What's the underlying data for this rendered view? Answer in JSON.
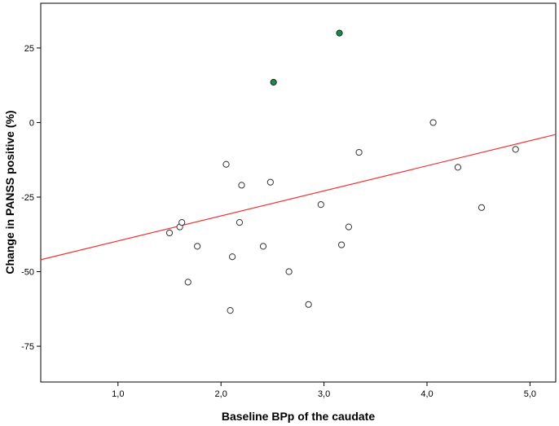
{
  "chart_data": {
    "type": "scatter",
    "title": "",
    "xlabel": "Baseline BPp of the caudate",
    "ylabel": "Change in PANSS positive (%)",
    "xlim": [
      0.25,
      5.25
    ],
    "ylim": [
      -87,
      40
    ],
    "x_ticks": [
      {
        "value": 1.0,
        "label": "1,0"
      },
      {
        "value": 2.0,
        "label": "2,0"
      },
      {
        "value": 3.0,
        "label": "3,0"
      },
      {
        "value": 4.0,
        "label": "4,0"
      },
      {
        "value": 5.0,
        "label": "5,0"
      }
    ],
    "y_ticks": [
      {
        "value": 25,
        "label": "25"
      },
      {
        "value": 0,
        "label": "0"
      },
      {
        "value": -25,
        "label": "-25"
      },
      {
        "value": -50,
        "label": "-50"
      },
      {
        "value": -75,
        "label": "-75"
      }
    ],
    "grid": false,
    "series": [
      {
        "marker": "open-circle",
        "color": "#ffffff",
        "stroke": "#333333",
        "points": [
          {
            "x": 1.5,
            "y": -37
          },
          {
            "x": 1.6,
            "y": -35
          },
          {
            "x": 1.62,
            "y": -33.5
          },
          {
            "x": 1.68,
            "y": -53.5
          },
          {
            "x": 1.77,
            "y": -41.5
          },
          {
            "x": 2.05,
            "y": -14
          },
          {
            "x": 2.09,
            "y": -63
          },
          {
            "x": 2.11,
            "y": -45
          },
          {
            "x": 2.18,
            "y": -33.5
          },
          {
            "x": 2.2,
            "y": -21
          },
          {
            "x": 2.41,
            "y": -41.5
          },
          {
            "x": 2.48,
            "y": -20
          },
          {
            "x": 2.66,
            "y": -50
          },
          {
            "x": 2.85,
            "y": -61
          },
          {
            "x": 2.97,
            "y": -27.5
          },
          {
            "x": 3.17,
            "y": -41
          },
          {
            "x": 3.24,
            "y": -35
          },
          {
            "x": 3.34,
            "y": -10
          },
          {
            "x": 4.06,
            "y": 0
          },
          {
            "x": 4.3,
            "y": -15
          },
          {
            "x": 4.53,
            "y": -28.5
          },
          {
            "x": 4.86,
            "y": -9
          }
        ]
      },
      {
        "marker": "filled-circle",
        "color": "#1a8a4a",
        "stroke": "#222222",
        "points": [
          {
            "x": 2.51,
            "y": 13.5
          },
          {
            "x": 3.15,
            "y": 30
          }
        ]
      }
    ],
    "fit_line": {
      "color": "#ee3333",
      "points": [
        {
          "x": 0.25,
          "y": -46
        },
        {
          "x": 5.25,
          "y": -4
        }
      ]
    }
  }
}
